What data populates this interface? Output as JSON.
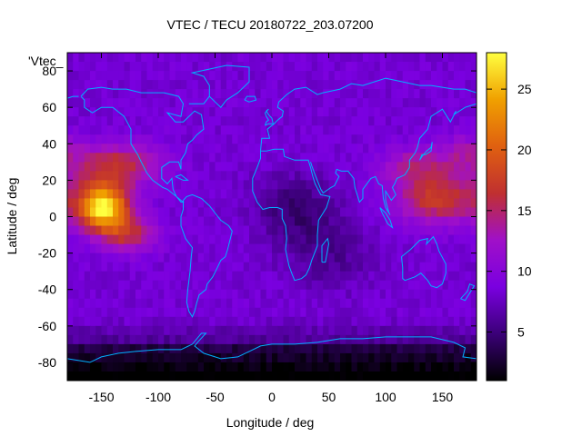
{
  "chart_data": {
    "type": "heatmap",
    "title": "VTEC / TECU 20180722_203.07200",
    "xlabel": "Longitude / deg",
    "ylabel": "Latitude / deg",
    "key_label": "'Vtec_",
    "xlim": [
      -180,
      180
    ],
    "ylim": [
      -90,
      90
    ],
    "x_ticks": [
      "-150",
      "-100",
      "-50",
      "0",
      "50",
      "100",
      "150"
    ],
    "x_tick_values": [
      -150,
      -100,
      -50,
      0,
      50,
      100,
      150
    ],
    "y_ticks": [
      "-80",
      "-60",
      "-40",
      "-20",
      "0",
      "20",
      "40",
      "60",
      "80"
    ],
    "y_tick_values": [
      -80,
      -60,
      -40,
      -20,
      0,
      20,
      40,
      60,
      80
    ],
    "colorbar": {
      "range": [
        1,
        28
      ],
      "ticks": [
        "5",
        "10",
        "15",
        "20",
        "25"
      ],
      "tick_values": [
        5,
        10,
        15,
        20,
        25
      ],
      "palette": [
        "#000000",
        "#3b0078",
        "#7a00e0",
        "#a010c8",
        "#c03030",
        "#e06010",
        "#f0a000",
        "#ffff40"
      ]
    },
    "coastline_color": "#00b0ff",
    "features": [
      {
        "name": "equatorial maximum, eastern Pacific",
        "lon": -150,
        "lat": 5,
        "vtec": 27
      },
      {
        "name": "equatorial crest, western Pacific",
        "lon": 160,
        "lat": 10,
        "vtec": 18
      },
      {
        "name": "background mid-latitudes",
        "vtec": 8
      },
      {
        "name": "Antarctic minimum",
        "lat": -78,
        "vtec": 2
      }
    ]
  }
}
